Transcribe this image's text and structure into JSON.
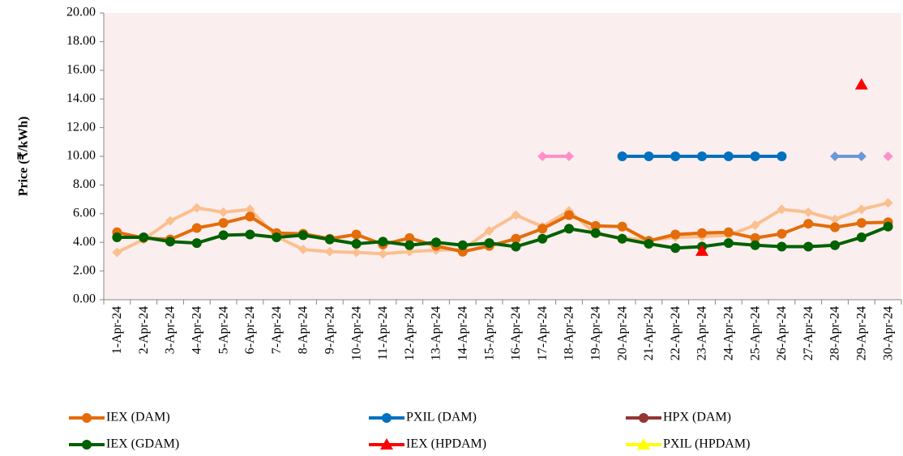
{
  "chart_data": {
    "type": "line",
    "y_label": "Price (₹/kWh)",
    "categories": [
      "1-Apr-24",
      "2-Apr-24",
      "3-Apr-24",
      "4-Apr-24",
      "5-Apr-24",
      "6-Apr-24",
      "7-Apr-24",
      "8-Apr-24",
      "9-Apr-24",
      "10-Apr-24",
      "11-Apr-24",
      "12-Apr-24",
      "13-Apr-24",
      "14-Apr-24",
      "15-Apr-24",
      "16-Apr-24",
      "17-Apr-24",
      "18-Apr-24",
      "19-Apr-24",
      "20-Apr-24",
      "21-Apr-24",
      "22-Apr-24",
      "23-Apr-24",
      "24-Apr-24",
      "25-Apr-24",
      "26-Apr-24",
      "27-Apr-24",
      "28-Apr-24",
      "29-Apr-24",
      "30-Apr-24"
    ],
    "ylim": [
      0,
      20
    ],
    "yticks": [
      {
        "value": 0,
        "label": "0.00"
      },
      {
        "value": 2,
        "label": "2.00"
      },
      {
        "value": 4,
        "label": "4.00"
      },
      {
        "value": 6,
        "label": "6.00"
      },
      {
        "value": 8,
        "label": "8.00"
      },
      {
        "value": 10,
        "label": "10.00"
      },
      {
        "value": 12,
        "label": "12.00"
      },
      {
        "value": 14,
        "label": "14.00"
      },
      {
        "value": 16,
        "label": "16.00"
      },
      {
        "value": 18,
        "label": "18.00"
      },
      {
        "value": 20,
        "label": "20.00"
      }
    ],
    "series": [
      {
        "color": "#fac090",
        "marker": "diamond",
        "values": [
          3.3,
          4.2,
          5.5,
          6.4,
          6.1,
          6.3,
          4.4,
          3.5,
          3.35,
          3.3,
          3.2,
          3.35,
          3.45,
          3.5,
          4.8,
          5.9,
          5.1,
          6.2,
          4.6,
          4.3,
          4.15,
          4.35,
          4.4,
          4.5,
          5.2,
          6.3,
          6.1,
          5.6,
          6.3,
          6.75
        ]
      },
      {
        "name": "IEX (DAM)",
        "color": "#e46c0a",
        "marker": "circle",
        "values": [
          4.7,
          4.3,
          4.2,
          5.0,
          5.35,
          5.8,
          4.65,
          4.6,
          4.25,
          4.55,
          3.85,
          4.3,
          3.75,
          3.35,
          3.75,
          4.25,
          4.95,
          5.9,
          5.15,
          5.1,
          4.1,
          4.55,
          4.65,
          4.7,
          4.3,
          4.6,
          5.3,
          5.05,
          5.35,
          5.4
        ]
      },
      {
        "name": "PXIL (DAM)",
        "color": "#0070c0",
        "marker": "circle",
        "values": [
          null,
          null,
          null,
          null,
          null,
          null,
          null,
          null,
          null,
          null,
          null,
          null,
          null,
          null,
          null,
          null,
          null,
          null,
          null,
          10,
          10,
          10,
          10,
          10,
          10,
          10,
          null,
          null,
          null,
          null
        ]
      },
      {
        "name": "HPX (DAM)",
        "color": "#943634",
        "marker": "circle",
        "values": [
          null,
          null,
          null,
          null,
          null,
          null,
          null,
          null,
          null,
          null,
          null,
          null,
          null,
          null,
          null,
          null,
          null,
          null,
          null,
          null,
          null,
          null,
          null,
          null,
          null,
          null,
          null,
          null,
          null,
          null
        ]
      },
      {
        "name": "IEX (GDAM)",
        "color": "#006100",
        "marker": "circle",
        "values": [
          4.35,
          4.35,
          4.05,
          3.95,
          4.5,
          4.55,
          4.35,
          4.5,
          4.2,
          3.9,
          4.05,
          3.8,
          4.0,
          3.8,
          3.95,
          3.7,
          4.25,
          4.95,
          4.65,
          4.25,
          3.9,
          3.6,
          3.7,
          3.95,
          3.8,
          3.7,
          3.7,
          3.8,
          4.35,
          5.1
        ]
      },
      {
        "name": "IEX (HPDAM)",
        "color": "#ff0000",
        "marker": "triangle",
        "values": [
          null,
          null,
          null,
          null,
          null,
          null,
          null,
          null,
          null,
          null,
          null,
          null,
          null,
          null,
          null,
          null,
          null,
          null,
          null,
          null,
          null,
          null,
          3.4,
          null,
          null,
          null,
          null,
          null,
          15,
          null
        ]
      },
      {
        "name": "PXIL (HPDAM)",
        "color": "#ffff00",
        "marker": "triangle",
        "values": [
          null,
          null,
          null,
          null,
          null,
          null,
          null,
          null,
          null,
          null,
          null,
          null,
          null,
          null,
          null,
          null,
          null,
          null,
          null,
          null,
          null,
          null,
          null,
          null,
          null,
          null,
          null,
          null,
          null,
          null
        ]
      },
      {
        "color": "#ff8fc8",
        "marker": "diamond",
        "values": [
          null,
          null,
          null,
          null,
          null,
          null,
          null,
          null,
          null,
          null,
          null,
          null,
          null,
          null,
          null,
          null,
          10,
          10,
          null,
          null,
          null,
          null,
          null,
          null,
          null,
          null,
          null,
          null,
          null,
          10
        ]
      },
      {
        "color": "#6d97d6",
        "marker": "diamond",
        "values": [
          null,
          null,
          null,
          null,
          null,
          null,
          null,
          null,
          null,
          null,
          null,
          null,
          null,
          null,
          null,
          null,
          null,
          null,
          null,
          null,
          null,
          null,
          null,
          null,
          null,
          null,
          null,
          10,
          10,
          null
        ]
      }
    ]
  }
}
